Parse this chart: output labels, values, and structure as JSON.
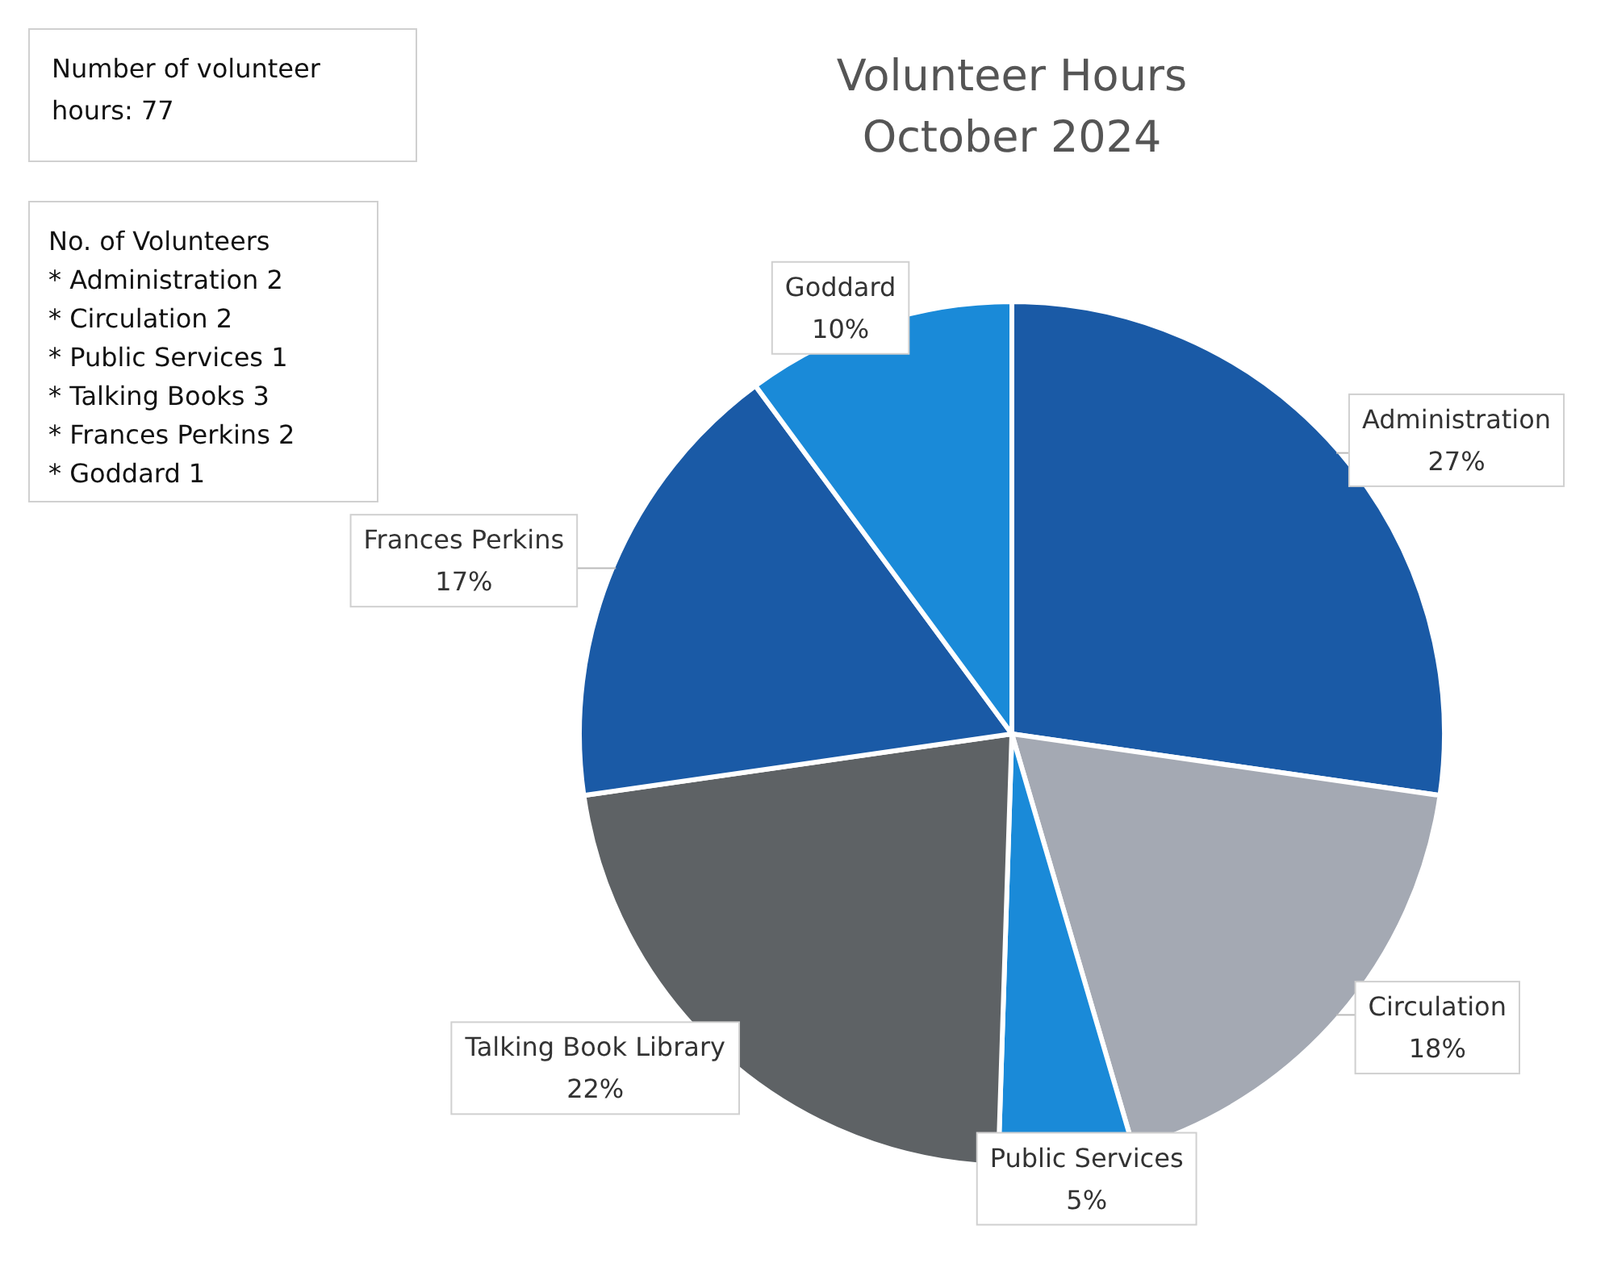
{
  "chart_data": {
    "type": "pie",
    "title": "Volunteer Hours October 2024",
    "categories": [
      "Administration",
      "Circulation",
      "Public Services",
      "Talking Book Library",
      "Frances Perkins",
      "Goddard"
    ],
    "values": [
      27,
      18,
      5,
      22,
      17,
      10
    ],
    "colors": [
      "#1a5aa6",
      "#a4a9b3",
      "#1a8ad8",
      "#5e6265",
      "#1a5aa6",
      "#1a8ad8"
    ],
    "value_labels": [
      "27%",
      "18%",
      "5%",
      "22%",
      "17%",
      "10%"
    ],
    "annotations": [
      "Number of volunteer hours: 77",
      "No. of Volunteers",
      "* Administration 2",
      "* Circulation 2",
      "* Public Services 1",
      "* Talking Books 3",
      "* Frances Perkins 2",
      "* Goddard 1"
    ]
  }
}
